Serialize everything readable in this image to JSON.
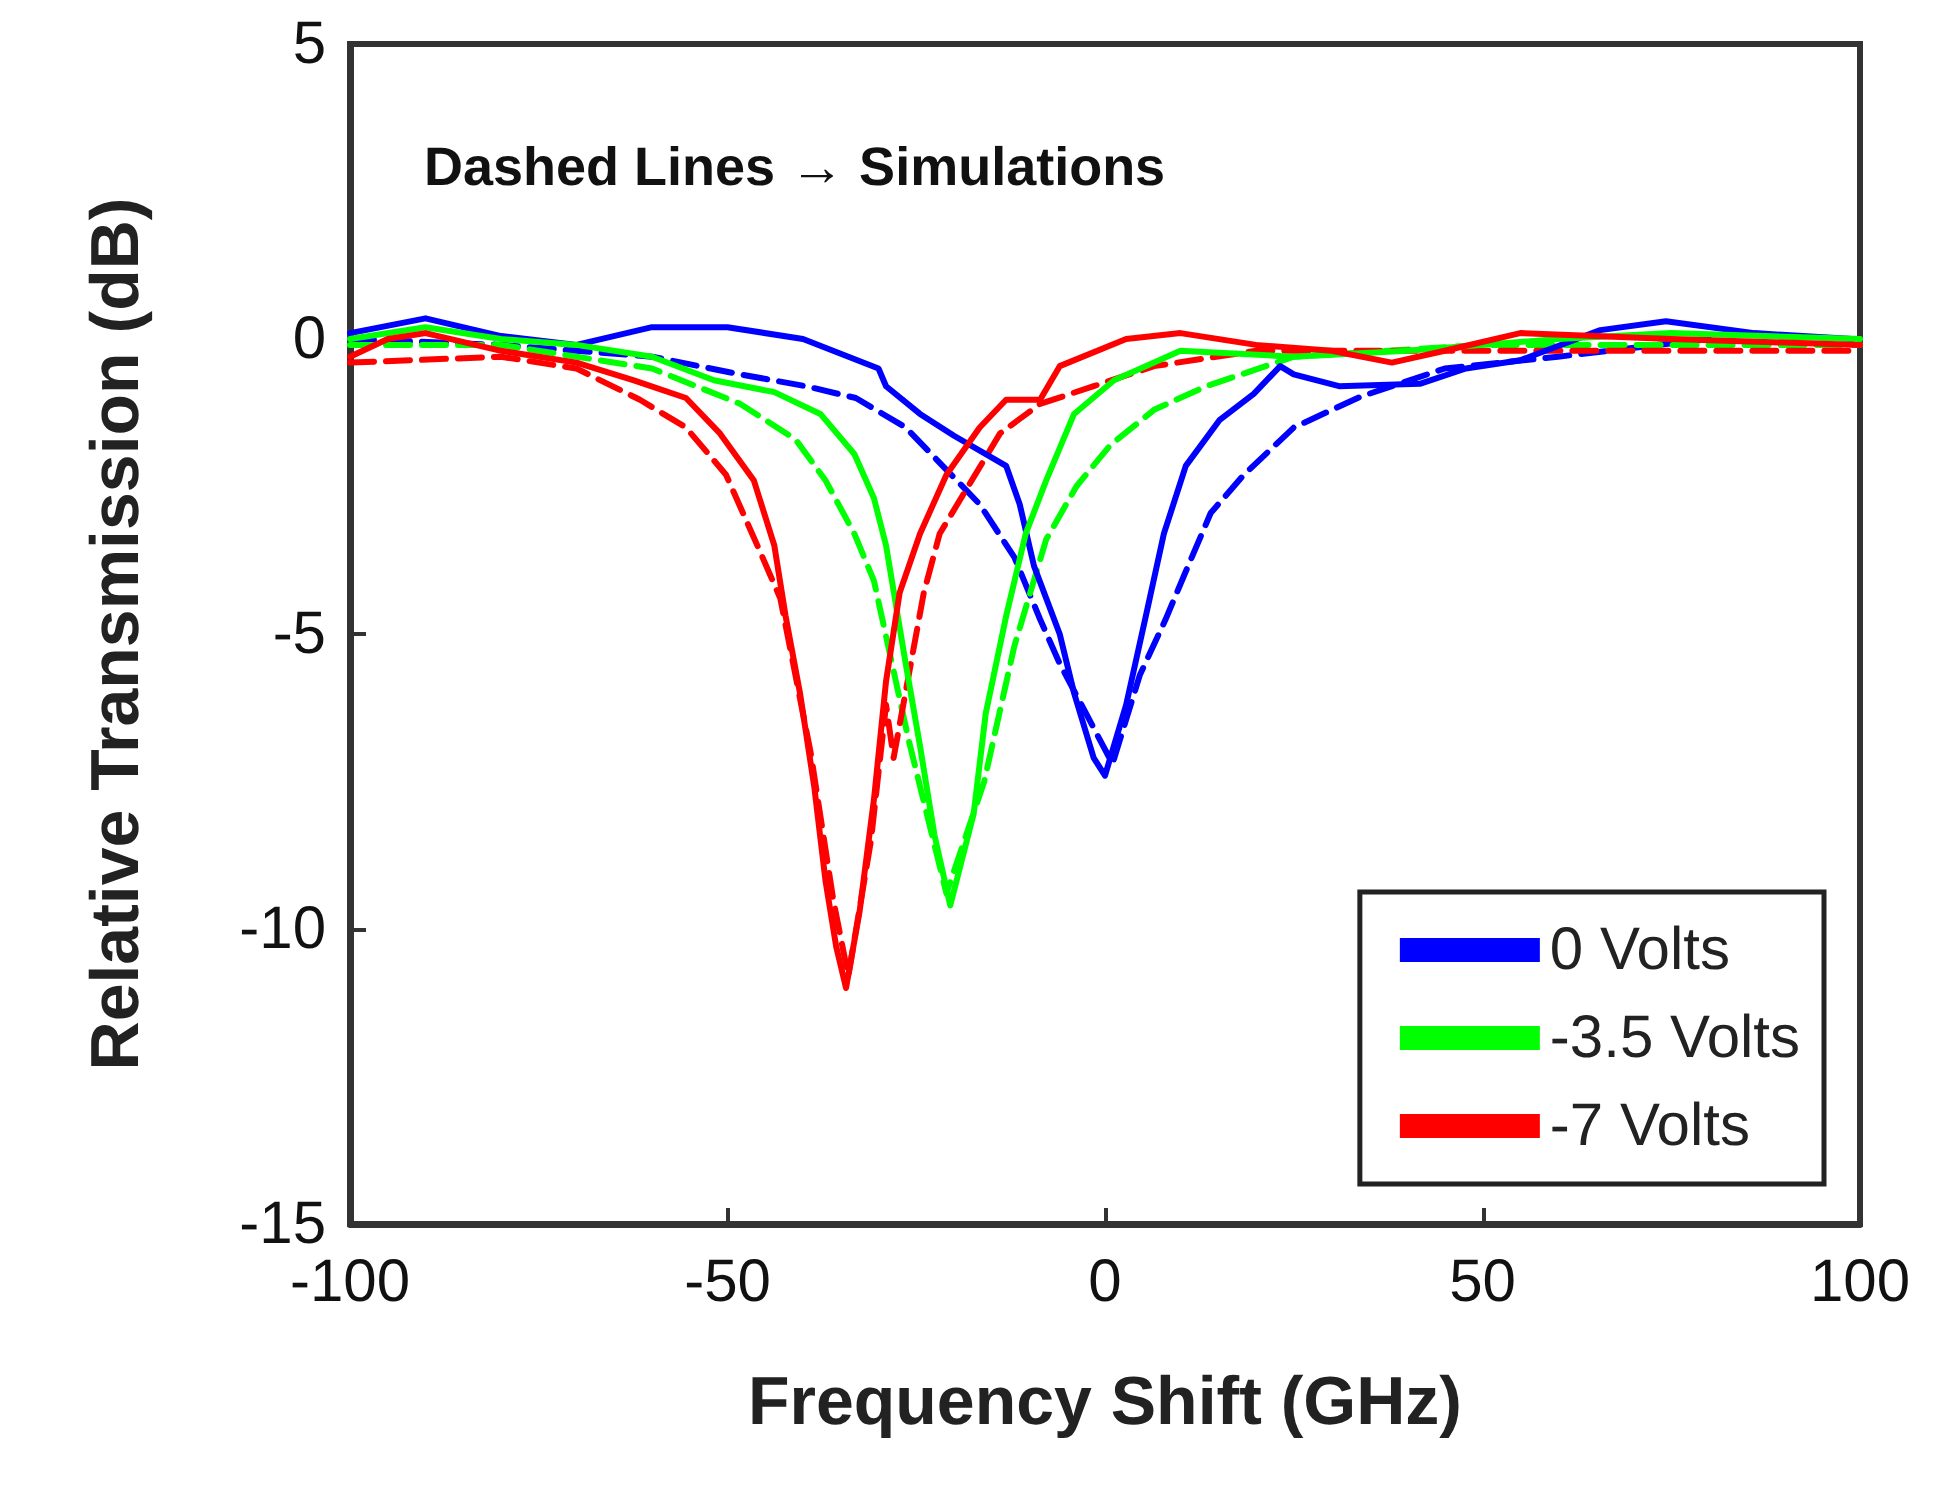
{
  "chart_data": {
    "type": "line",
    "xlabel": "Frequency Shift (GHz)",
    "ylabel": "Relative Transmission (dB)",
    "annotations": [
      "Dashed Lines → Simulations"
    ],
    "xlim": [
      -100,
      100
    ],
    "xticks": [
      -100,
      -50,
      0,
      50,
      100
    ],
    "ylim": [
      -15,
      5
    ],
    "yticks": [
      -15,
      -10,
      -5,
      0,
      5
    ],
    "grid": false,
    "legend": "bottom right",
    "marker": "none",
    "series": [
      {
        "name": "0 Volts",
        "color": "#0000ff",
        "line_style": "solid",
        "x": [
          -100,
          -90,
          -80,
          -70,
          -60,
          -50,
          -40,
          -30,
          -29,
          -24.5,
          -20,
          -13.1,
          -11.3,
          -9.4,
          -6,
          -4.1,
          -1.5,
          0,
          2.8,
          5.4,
          7.8,
          10.7,
          15.2,
          19.7,
          23.2,
          25,
          31,
          41.7,
          47.8,
          55,
          65.6,
          74.3,
          86,
          99
        ],
        "values": [
          0.1,
          0.35,
          0.05,
          -0.1,
          0.2,
          0.2,
          0,
          -0.5,
          -0.8,
          -1.27,
          -1.64,
          -2.15,
          -2.8,
          -3.85,
          -5,
          -6,
          -7.1,
          -7.4,
          -6.2,
          -4.7,
          -3.3,
          -2.15,
          -1.37,
          -0.93,
          -0.46,
          -0.6,
          -0.8,
          -0.76,
          -0.5,
          -0.36,
          0.15,
          0.3,
          0.1,
          0
        ]
      },
      {
        "name": "-3.5 Volts",
        "color": "#00ff00",
        "line_style": "solid",
        "x": [
          -100,
          -90,
          -80,
          -70,
          -60,
          -51.8,
          -43.8,
          -37.7,
          -33.2,
          -30.6,
          -29,
          -26.4,
          -24.5,
          -22.6,
          -20.5,
          -17.4,
          -15.8,
          -13.1,
          -10.5,
          -7.8,
          -4.1,
          1.2,
          10,
          25,
          40,
          60,
          75,
          100
        ],
        "values": [
          0,
          0.2,
          0,
          -0.1,
          -0.3,
          -0.7,
          -0.9,
          -1.27,
          -1.95,
          -2.7,
          -3.5,
          -5.5,
          -6.9,
          -8.4,
          -9.6,
          -8.05,
          -6.35,
          -4.7,
          -3.3,
          -2.4,
          -1.27,
          -0.7,
          -0.2,
          -0.3,
          -0.2,
          0,
          0.1,
          0
        ]
      },
      {
        "name": "-7 Volts",
        "color": "#ff0000",
        "line_style": "solid",
        "x": [
          -100,
          -95,
          -90,
          -80,
          -70,
          -62.4,
          -55.5,
          -51,
          -46.5,
          -43.8,
          -42.3,
          -40.4,
          -38.5,
          -37,
          -35.6,
          -34.3,
          -32.5,
          -30.6,
          -29,
          -27.2,
          -24.5,
          -21,
          -16.6,
          -13.1,
          -8.6,
          -6,
          2.8,
          10,
          20,
          30,
          38,
          45,
          55,
          75,
          100
        ],
        "values": [
          -0.3,
          0,
          0.1,
          -0.2,
          -0.4,
          -0.7,
          -1,
          -1.6,
          -2.4,
          -3.5,
          -4.7,
          -6,
          -7.6,
          -9.2,
          -10.3,
          -11,
          -9.7,
          -7.8,
          -5.8,
          -4.3,
          -3.3,
          -2.3,
          -1.5,
          -1.03,
          -1.03,
          -0.46,
          0,
          0.1,
          -0.1,
          -0.2,
          -0.4,
          -0.2,
          0.1,
          0,
          -0.1
        ]
      },
      {
        "color": "#0000ff",
        "line_style": "dashed",
        "x": [
          -100,
          -80,
          -60,
          -48.3,
          -39.6,
          -33,
          -26.4,
          -16.6,
          -12,
          -8.6,
          -6,
          1,
          4.6,
          8,
          10.5,
          14,
          18.4,
          25,
          33.8,
          45,
          60,
          80
        ],
        "values": [
          0,
          -0.1,
          -0.3,
          -0.6,
          -0.8,
          -1,
          -1.5,
          -2.8,
          -3.7,
          -4.75,
          -5.5,
          -7.2,
          -5.7,
          -4.76,
          -4,
          -2.95,
          -2.3,
          -1.5,
          -0.98,
          -0.5,
          -0.3,
          0
        ]
      },
      {
        "color": "#00ff00",
        "line_style": "dashed",
        "x": [
          -100,
          -80,
          -60,
          -48.3,
          -41,
          -37,
          -33.2,
          -30.6,
          -26,
          -21,
          -16,
          -12,
          -7.8,
          -3.8,
          0.7,
          6.5,
          13.4,
          25,
          50,
          100
        ],
        "values": [
          -0.1,
          -0.1,
          -0.5,
          -1.1,
          -1.7,
          -2.4,
          -3.3,
          -4.1,
          -6.8,
          -9.4,
          -7.5,
          -5.2,
          -3.4,
          -2.5,
          -1.8,
          -1.2,
          -0.8,
          -0.3,
          -0.1,
          -0.1
        ]
      },
      {
        "color": "#ff0000",
        "line_style": "dashed",
        "x": [
          -100,
          -80,
          -70,
          -61.6,
          -55.5,
          -50.2,
          -45.7,
          -43,
          -39,
          -36,
          -34,
          -31,
          -29,
          -28,
          -24,
          -21.9,
          -13.9,
          -8.6,
          -1.5,
          6.5,
          20,
          50,
          100
        ],
        "values": [
          -0.4,
          -0.3,
          -0.5,
          -1.03,
          -1.5,
          -2.3,
          -3.6,
          -4.4,
          -7,
          -9.5,
          -10.8,
          -8.5,
          -6.2,
          -7.1,
          -4.3,
          -3.3,
          -1.6,
          -1.1,
          -0.8,
          -0.46,
          -0.2,
          -0.2,
          -0.2
        ]
      }
    ]
  }
}
